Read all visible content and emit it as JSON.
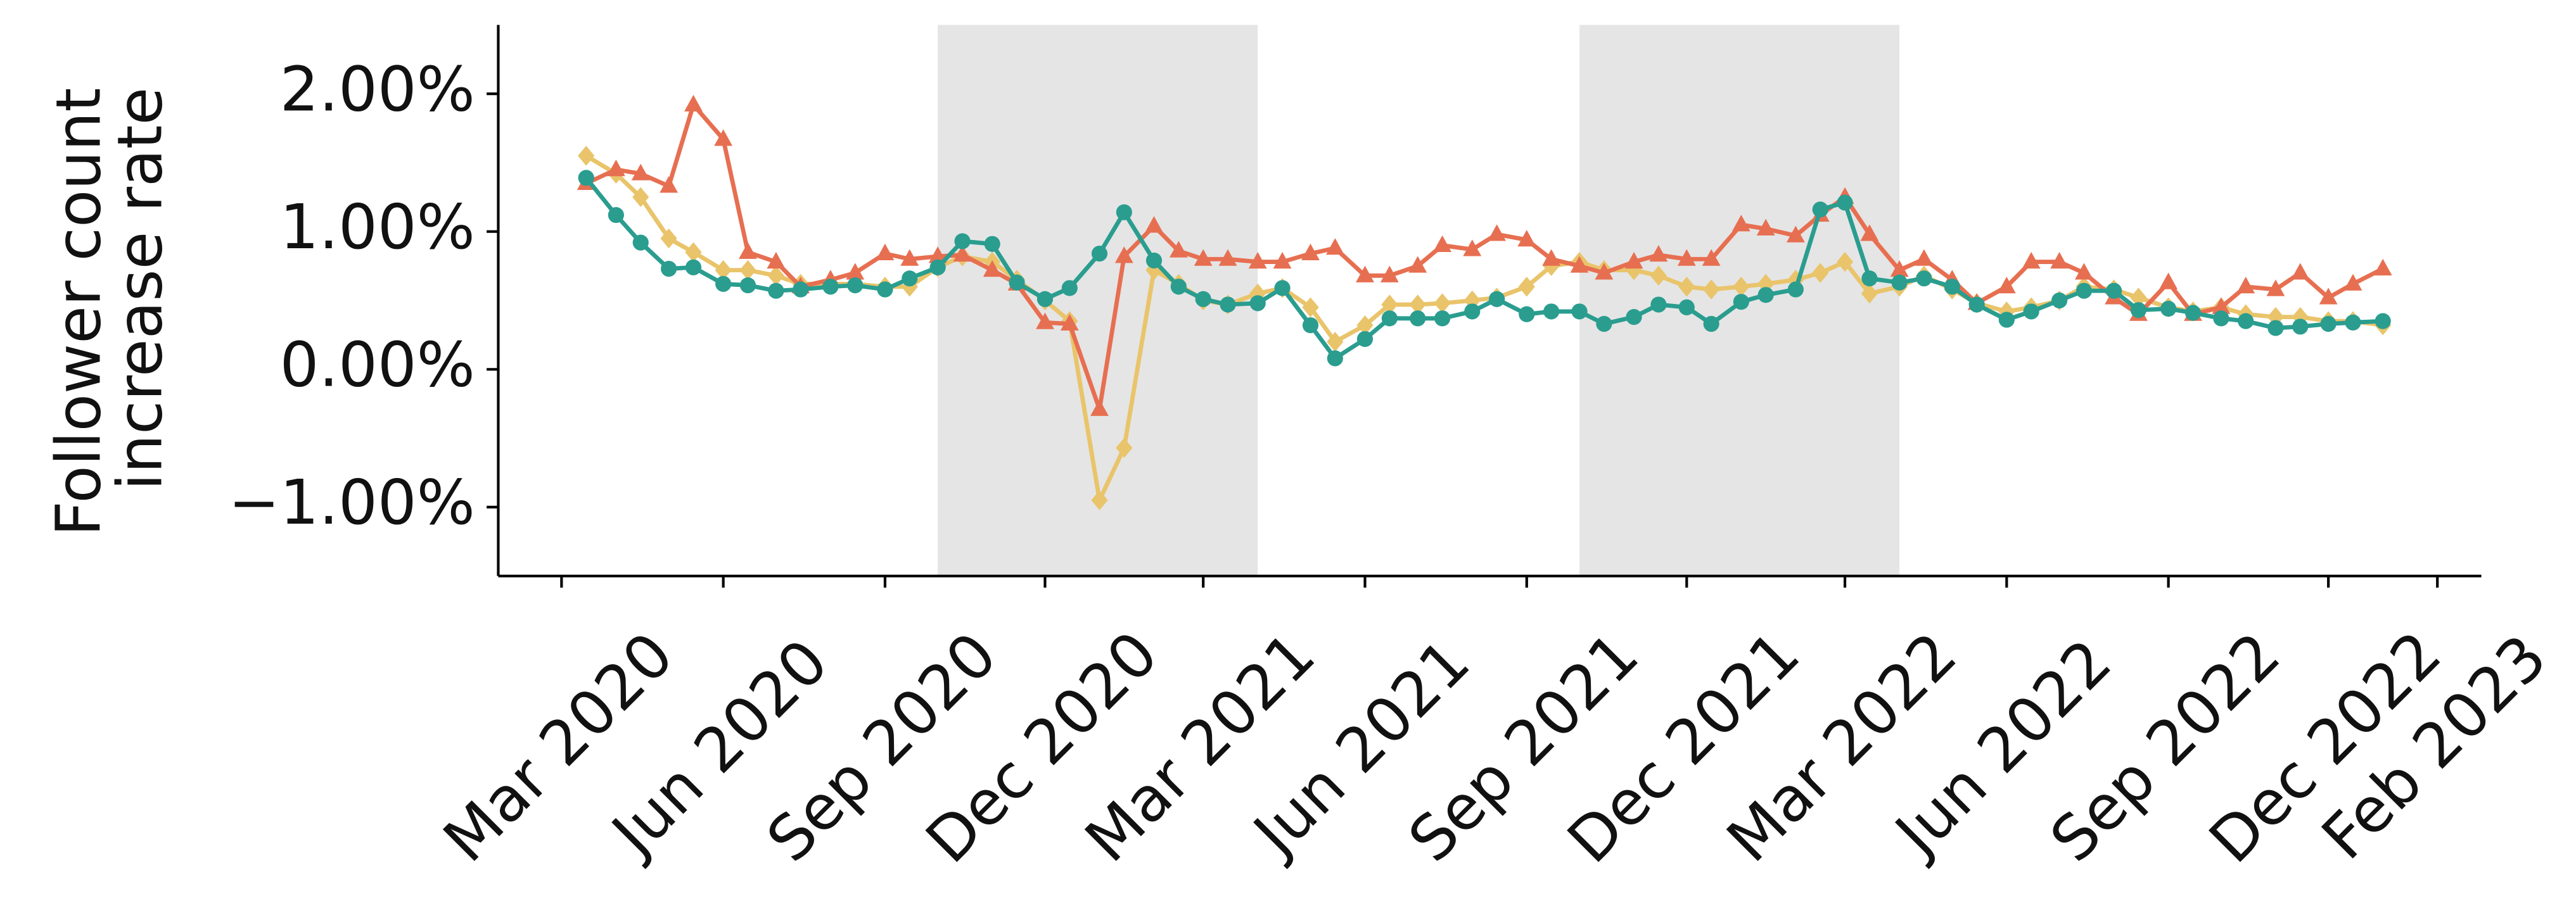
{
  "chart_data": {
    "type": "line",
    "ylabel": [
      "Follower count",
      "increase rate"
    ],
    "xlim": [
      "2020-01-25",
      "2023-02-26"
    ],
    "xticks": [
      {
        "value": "2020-03-01",
        "label": "Mar 2020"
      },
      {
        "value": "2020-06-01",
        "label": "Jun 2020"
      },
      {
        "value": "2020-09-01",
        "label": "Sep 2020"
      },
      {
        "value": "2020-12-01",
        "label": "Dec 2020"
      },
      {
        "value": "2021-03-01",
        "label": "Mar 2021"
      },
      {
        "value": "2021-06-01",
        "label": "Jun 2021"
      },
      {
        "value": "2021-09-01",
        "label": "Sep 2021"
      },
      {
        "value": "2021-12-01",
        "label": "Dec 2021"
      },
      {
        "value": "2022-03-01",
        "label": "Mar 2022"
      },
      {
        "value": "2022-06-01",
        "label": "Jun 2022"
      },
      {
        "value": "2022-09-01",
        "label": "Sep 2022"
      },
      {
        "value": "2022-12-01",
        "label": "Dec 2022"
      },
      {
        "value": "2023-02-01",
        "label": "Feb 2023"
      }
    ],
    "ylim": [
      -1.5,
      2.5
    ],
    "yticks": [
      {
        "value": -1,
        "label": "−1.00%"
      },
      {
        "value": 0,
        "label": "0.00%"
      },
      {
        "value": 1,
        "label": "1.00%"
      },
      {
        "value": 2,
        "label": "2.00%"
      }
    ],
    "shaded_ranges": [
      [
        "2020-10-01",
        "2021-04-01"
      ],
      [
        "2021-10-01",
        "2022-04-01"
      ]
    ],
    "shade_color": "#e5e5e5",
    "x": [
      "2020-03-15",
      "2020-04-01",
      "2020-04-15",
      "2020-05-01",
      "2020-05-15",
      "2020-06-01",
      "2020-06-15",
      "2020-07-01",
      "2020-07-15",
      "2020-08-01",
      "2020-08-15",
      "2020-09-01",
      "2020-09-15",
      "2020-10-01",
      "2020-10-15",
      "2020-11-01",
      "2020-11-15",
      "2020-12-01",
      "2020-12-15",
      "2021-01-01",
      "2021-01-15",
      "2021-02-01",
      "2021-02-15",
      "2021-03-01",
      "2021-03-15",
      "2021-04-01",
      "2021-04-15",
      "2021-05-01",
      "2021-05-15",
      "2021-06-01",
      "2021-06-15",
      "2021-07-01",
      "2021-07-15",
      "2021-08-01",
      "2021-08-15",
      "2021-09-01",
      "2021-09-15",
      "2021-10-01",
      "2021-10-15",
      "2021-11-01",
      "2021-11-15",
      "2021-12-01",
      "2021-12-15",
      "2022-01-01",
      "2022-01-15",
      "2022-02-01",
      "2022-02-15",
      "2022-03-01",
      "2022-03-15",
      "2022-04-01",
      "2022-04-15",
      "2022-05-01",
      "2022-05-15",
      "2022-06-01",
      "2022-06-15",
      "2022-07-01",
      "2022-07-15",
      "2022-08-01",
      "2022-08-15",
      "2022-09-01",
      "2022-09-15",
      "2022-10-01",
      "2022-10-15",
      "2022-11-01",
      "2022-11-15",
      "2022-12-01",
      "2022-12-15",
      "2023-01-01"
    ],
    "series": [
      {
        "color": "#e9c46a",
        "marker": "diamond",
        "values": [
          1.55,
          1.42,
          1.25,
          0.95,
          0.85,
          0.72,
          0.72,
          0.68,
          0.62,
          0.62,
          0.62,
          0.6,
          0.6,
          0.74,
          0.82,
          0.78,
          0.65,
          0.5,
          0.35,
          -0.95,
          -0.57,
          0.72,
          0.62,
          0.5,
          0.47,
          0.55,
          0.59,
          0.45,
          0.2,
          0.32,
          0.47,
          0.47,
          0.48,
          0.5,
          0.52,
          0.6,
          0.75,
          0.78,
          0.72,
          0.72,
          0.68,
          0.6,
          0.58,
          0.6,
          0.62,
          0.65,
          0.7,
          0.78,
          0.55,
          0.6,
          0.68,
          0.58,
          0.48,
          0.42,
          0.45,
          0.5,
          0.6,
          0.58,
          0.52,
          0.45,
          0.42,
          0.45,
          0.4,
          0.38,
          0.38,
          0.35,
          0.35,
          0.32
        ]
      },
      {
        "color": "#e76f51",
        "marker": "triangle",
        "values": [
          1.35,
          1.45,
          1.42,
          1.33,
          1.92,
          1.67,
          0.85,
          0.78,
          0.6,
          0.65,
          0.7,
          0.84,
          0.8,
          0.82,
          0.83,
          0.72,
          0.62,
          0.34,
          0.33,
          -0.29,
          0.82,
          1.04,
          0.86,
          0.8,
          0.8,
          0.78,
          0.78,
          0.84,
          0.88,
          0.68,
          0.68,
          0.75,
          0.9,
          0.87,
          0.98,
          0.94,
          0.8,
          0.75,
          0.7,
          0.78,
          0.83,
          0.8,
          0.8,
          1.05,
          1.02,
          0.97,
          1.12,
          1.25,
          0.98,
          0.72,
          0.8,
          0.65,
          0.48,
          0.6,
          0.78,
          0.78,
          0.7,
          0.52,
          0.4,
          0.63,
          0.4,
          0.45,
          0.6,
          0.58,
          0.7,
          0.52,
          0.62,
          0.73
        ]
      },
      {
        "color": "#2a9d8f",
        "marker": "circle",
        "values": [
          1.39,
          1.12,
          0.92,
          0.73,
          0.74,
          0.62,
          0.61,
          0.57,
          0.58,
          0.6,
          0.61,
          0.58,
          0.66,
          0.74,
          0.93,
          0.91,
          0.63,
          0.51,
          0.59,
          0.84,
          1.14,
          0.79,
          0.6,
          0.51,
          0.47,
          0.48,
          0.59,
          0.32,
          0.08,
          0.22,
          0.37,
          0.37,
          0.37,
          0.42,
          0.51,
          0.4,
          0.42,
          0.42,
          0.33,
          0.38,
          0.47,
          0.45,
          0.33,
          0.49,
          0.54,
          0.58,
          1.16,
          1.21,
          0.66,
          0.63,
          0.66,
          0.6,
          0.47,
          0.36,
          0.42,
          0.5,
          0.57,
          0.57,
          0.43,
          0.44,
          0.41,
          0.37,
          0.35,
          0.3,
          0.31,
          0.33,
          0.34,
          0.35
        ]
      }
    ]
  }
}
